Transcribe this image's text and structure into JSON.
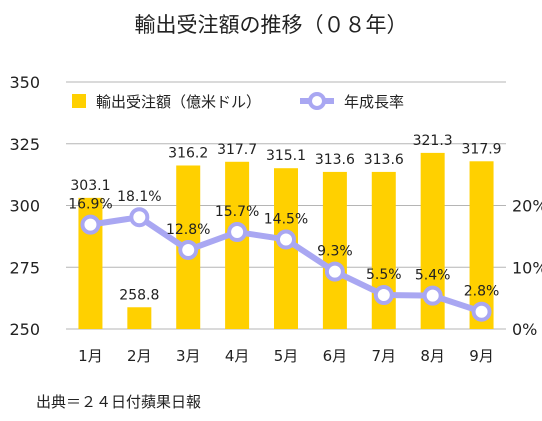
{
  "chart_data": {
    "type": "bar+line",
    "title": "輸出受注額の推移（０８年）",
    "categories": [
      "1月",
      "2月",
      "3月",
      "4月",
      "5月",
      "6月",
      "7月",
      "8月",
      "9月"
    ],
    "series": [
      {
        "name": "輸出受注額（億米ドル）",
        "type": "bar",
        "axis": "left",
        "values": [
          303.1,
          258.8,
          316.2,
          317.7,
          315.1,
          313.6,
          313.6,
          321.3,
          317.9
        ],
        "labels": [
          "303.1",
          "258.8",
          "316.2",
          "317.7",
          "315.1",
          "313.6",
          "313.6",
          "321.3",
          "317.9"
        ]
      },
      {
        "name": "年成長率",
        "type": "line",
        "axis": "right",
        "values": [
          16.9,
          18.1,
          12.8,
          15.7,
          14.5,
          9.3,
          5.5,
          5.4,
          2.8
        ],
        "labels": [
          "16.9%",
          "18.1%",
          "12.8%",
          "15.7%",
          "14.5%",
          "9.3%",
          "5.5%",
          "5.4%",
          "2.8%"
        ]
      }
    ],
    "y_left": {
      "range": [
        250,
        350
      ],
      "ticks": [
        "250",
        "275",
        "300",
        "325",
        "350"
      ]
    },
    "y_right": {
      "range": [
        0,
        40
      ],
      "ticks": [
        "0%",
        "10%",
        "20%"
      ]
    },
    "grid": true,
    "legend": "top-left",
    "colors": {
      "bar": "#FFD000",
      "line": "#A9A7F2",
      "grid": "#B5B5B5",
      "marker_fill": "#ffffff"
    }
  },
  "footer": {
    "source": "出典＝２４日付蘋果日報"
  }
}
